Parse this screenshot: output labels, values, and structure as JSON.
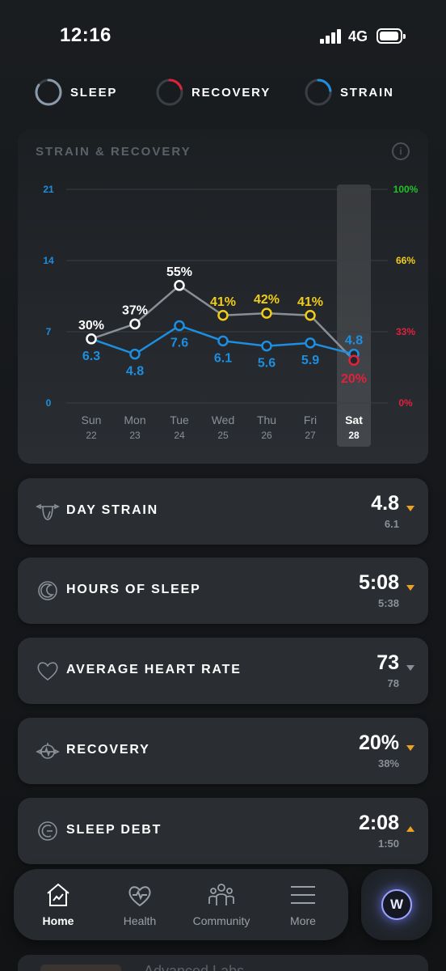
{
  "status_bar": {
    "time": "12:16",
    "network": "4G"
  },
  "top_tabs": [
    {
      "label": "SLEEP",
      "ring_color": "#8a9aab",
      "progress": 0.85
    },
    {
      "label": "RECOVERY",
      "ring_color": "#e0223b",
      "progress": 0.2
    },
    {
      "label": "STRAIN",
      "ring_color": "#1e8fe0",
      "progress": 0.23
    }
  ],
  "chart": {
    "title": "STRAIN & RECOVERY",
    "info_icon": "i"
  },
  "chart_data": {
    "type": "line",
    "title": "STRAIN & RECOVERY",
    "categories": [
      "Sun 22",
      "Mon 23",
      "Tue 24",
      "Wed 25",
      "Thu 26",
      "Fri 27",
      "Sat 28"
    ],
    "days": [
      "Sun",
      "Mon",
      "Tue",
      "Wed",
      "Thu",
      "Fri",
      "Sat"
    ],
    "dates": [
      "22",
      "23",
      "24",
      "25",
      "26",
      "27",
      "28"
    ],
    "highlighted_category": "Sat 28",
    "left_axis": {
      "ticks": [
        "21",
        "14",
        "7",
        "0"
      ],
      "ylim": [
        0,
        21
      ],
      "color": "#1e8fe0"
    },
    "right_axis": {
      "ticks": [
        "100%",
        "66%",
        "33%",
        "0%"
      ],
      "ylim": [
        0,
        100
      ],
      "colors": [
        "#22c02a",
        "#f2cc1a",
        "#e0223b",
        "#e0223b"
      ]
    },
    "series": [
      {
        "axis": "left",
        "values": [
          6.3,
          4.8,
          7.6,
          6.1,
          5.6,
          5.9,
          4.8
        ],
        "labels": [
          "6.3",
          "4.8",
          "7.6",
          "6.1",
          "5.6",
          "5.9",
          "4.8"
        ],
        "color": "#1e8fe0"
      },
      {
        "axis": "right",
        "values": [
          30,
          37,
          55,
          41,
          42,
          41,
          20
        ],
        "labels": [
          "30%",
          "37%",
          "55%",
          "41%",
          "42%",
          "41%",
          "20%"
        ],
        "point_colors": [
          "#ffffff",
          "#ffffff",
          "#ffffff",
          "#f2cc1a",
          "#f2cc1a",
          "#f2cc1a",
          "#e0223b"
        ],
        "line_color": "#8a8f95"
      }
    ],
    "grid": true
  },
  "metrics": [
    {
      "label": "DAY STRAIN",
      "value": "4.8",
      "sub": "6.1",
      "trend": "down",
      "arrow_color": "#f0a020",
      "icon": "strain-gauge-icon"
    },
    {
      "label": "HOURS OF SLEEP",
      "value": "5:08",
      "sub": "5:38",
      "trend": "down",
      "arrow_color": "#f0a020",
      "icon": "moon-icon"
    },
    {
      "label": "AVERAGE HEART RATE",
      "value": "73",
      "sub": "78",
      "trend": "down",
      "arrow_color": "#8a9096",
      "icon": "heart-icon"
    },
    {
      "label": "RECOVERY",
      "value": "20%",
      "sub": "38%",
      "trend": "down",
      "arrow_color": "#f0a020",
      "icon": "recovery-gauge-icon"
    },
    {
      "label": "SLEEP DEBT",
      "value": "2:08",
      "sub": "1:50",
      "trend": "up",
      "arrow_color": "#f0a020",
      "icon": "sleep-debt-icon"
    }
  ],
  "peek_card": {
    "text": "Advanced Labs"
  },
  "nav": [
    {
      "label": "Home",
      "icon": "home-chart-icon",
      "active": true
    },
    {
      "label": "Health",
      "icon": "heart-pulse-icon",
      "active": false
    },
    {
      "label": "Community",
      "icon": "people-icon",
      "active": false
    },
    {
      "label": "More",
      "icon": "menu-icon",
      "active": false
    }
  ],
  "whoop_button": {
    "label": "W"
  }
}
